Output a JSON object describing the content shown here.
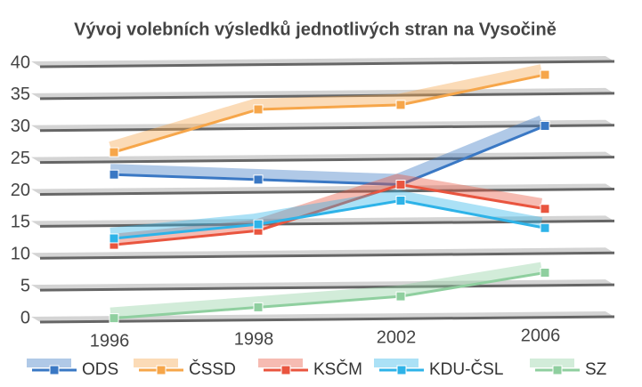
{
  "chart_data": {
    "type": "line",
    "title": "Vývoj volebních výsledků jednotlivých stran na Vysočině",
    "categories": [
      "1996",
      "1998",
      "2002",
      "2006"
    ],
    "series": [
      {
        "name": "ODS",
        "color": "#3a78c4",
        "values": [
          23,
          22,
          21,
          30
        ]
      },
      {
        "name": "ČSSD",
        "color": "#f6a64a",
        "values": [
          26.5,
          33,
          33.5,
          38
        ]
      },
      {
        "name": "KSČM",
        "color": "#e9553f",
        "values": [
          12,
          14,
          21,
          17
        ]
      },
      {
        "name": "KDU-ČSL",
        "color": "#2eb3e8",
        "values": [
          13,
          15,
          18.5,
          14
        ]
      },
      {
        "name": "SZ",
        "color": "#8fcf9f",
        "values": [
          0.5,
          2,
          3.5,
          7
        ]
      }
    ],
    "ylim": [
      0,
      40
    ],
    "yticks": [
      0,
      5,
      10,
      15,
      20,
      25,
      30,
      35,
      40
    ],
    "grid": true
  }
}
